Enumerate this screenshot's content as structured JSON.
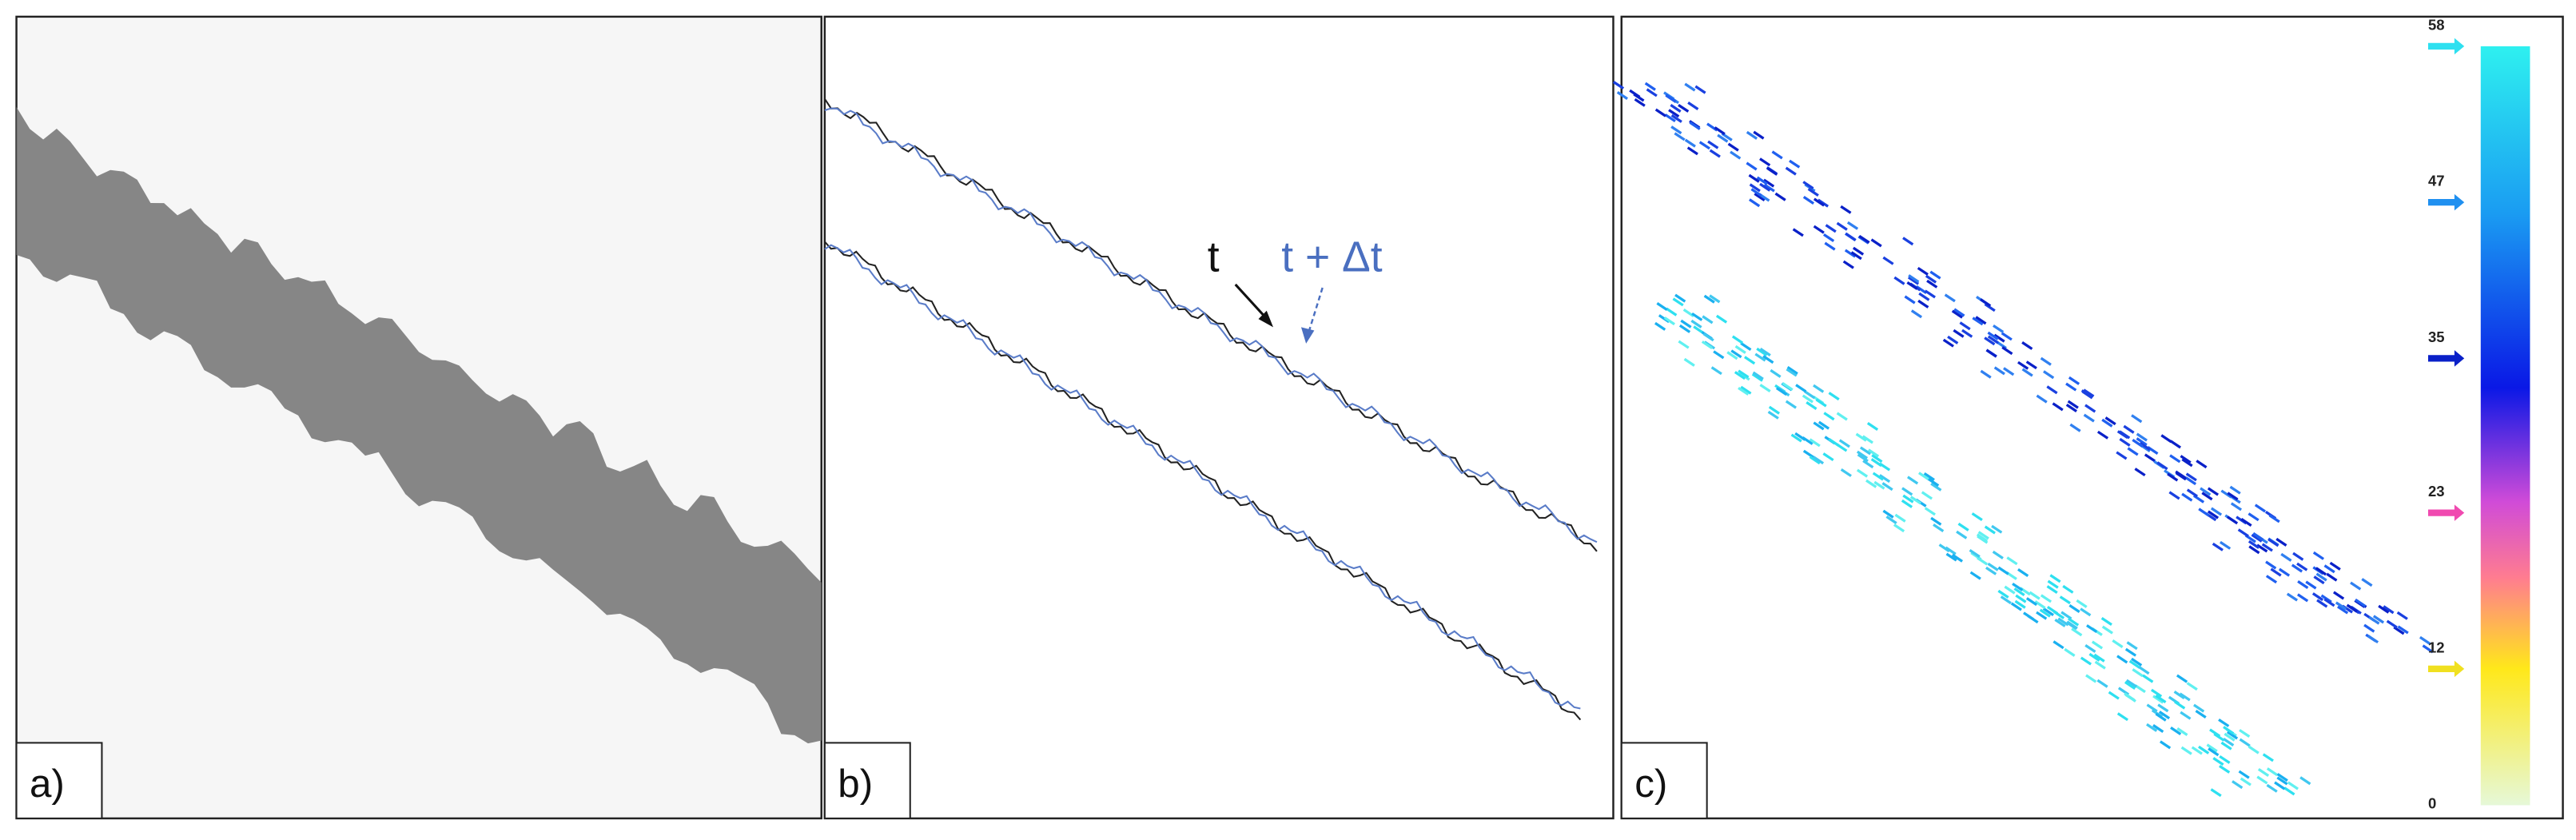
{
  "panels": [
    {
      "label": "a)"
    },
    {
      "label": "b)",
      "annotations": [
        "t",
        "t + Δt"
      ]
    },
    {
      "label": "c)",
      "colorbar": {
        "ticks": [
          58,
          47,
          35,
          23,
          12,
          0
        ]
      }
    }
  ]
}
